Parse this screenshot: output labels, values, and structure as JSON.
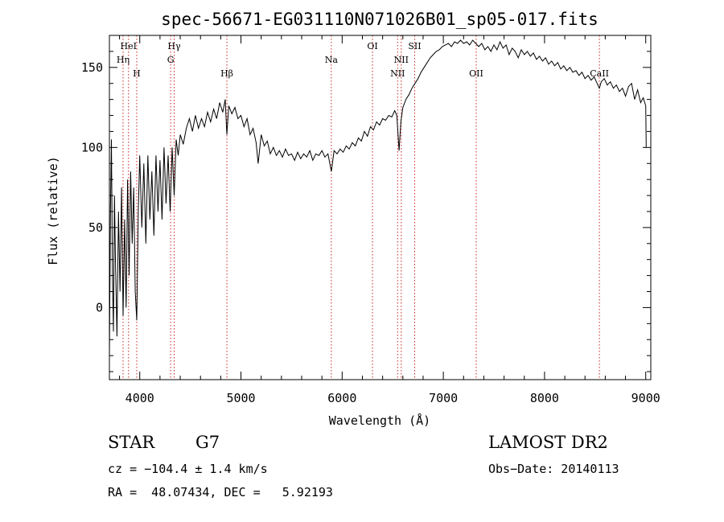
{
  "chart_data": {
    "type": "line",
    "title": "spec-56671-EG031110N071026B01_sp05-017.fits",
    "xlabel": "Wavelength (Å)",
    "ylabel": "Flux (relative)",
    "xlim": [
      3700,
      9050
    ],
    "ylim": [
      -45,
      170
    ],
    "xticks": [
      4000,
      5000,
      6000,
      7000,
      8000,
      9000
    ],
    "yticks": [
      0,
      50,
      100,
      150
    ],
    "grid": false,
    "legend": "none",
    "series_color": "#000000",
    "line_marker_color": "#cc2222",
    "spectral_lines": [
      {
        "label": "Hη",
        "x": 3835,
        "row": 1
      },
      {
        "label": "HeI",
        "x": 3889,
        "row": 0
      },
      {
        "label": "H",
        "x": 3970,
        "row": 2
      },
      {
        "label": "Hγ",
        "x": 4340,
        "row": 0
      },
      {
        "label": "G",
        "x": 4305,
        "row": 1
      },
      {
        "label": "Hβ",
        "x": 4861,
        "row": 2
      },
      {
        "label": "Na",
        "x": 5893,
        "row": 1
      },
      {
        "label": "OI",
        "x": 6300,
        "row": 0
      },
      {
        "label": "NII",
        "x": 6584,
        "row": 1
      },
      {
        "label": "NII",
        "x": 6548,
        "row": 2
      },
      {
        "label": "OII",
        "x": 7325,
        "row": 2
      },
      {
        "label": "SII",
        "x": 6717,
        "row": 0
      },
      {
        "label": "CaII",
        "x": 8542,
        "row": 2
      }
    ],
    "spectrum": [
      [
        3700,
        -30
      ],
      [
        3710,
        60
      ],
      [
        3720,
        105
      ],
      [
        3730,
        20
      ],
      [
        3740,
        -15
      ],
      [
        3750,
        70
      ],
      [
        3760,
        30
      ],
      [
        3775,
        -18
      ],
      [
        3790,
        60
      ],
      [
        3805,
        10
      ],
      [
        3820,
        75
      ],
      [
        3835,
        -5
      ],
      [
        3850,
        55
      ],
      [
        3865,
        0
      ],
      [
        3880,
        80
      ],
      [
        3895,
        20
      ],
      [
        3910,
        85
      ],
      [
        3925,
        40
      ],
      [
        3940,
        75
      ],
      [
        3955,
        10
      ],
      [
        3970,
        -8
      ],
      [
        3985,
        60
      ],
      [
        4000,
        95
      ],
      [
        4020,
        50
      ],
      [
        4040,
        90
      ],
      [
        4060,
        40
      ],
      [
        4080,
        95
      ],
      [
        4100,
        55
      ],
      [
        4120,
        85
      ],
      [
        4140,
        45
      ],
      [
        4160,
        95
      ],
      [
        4180,
        60
      ],
      [
        4200,
        92
      ],
      [
        4220,
        55
      ],
      [
        4240,
        100
      ],
      [
        4260,
        65
      ],
      [
        4280,
        95
      ],
      [
        4300,
        60
      ],
      [
        4320,
        100
      ],
      [
        4340,
        70
      ],
      [
        4360,
        105
      ],
      [
        4380,
        95
      ],
      [
        4400,
        108
      ],
      [
        4430,
        102
      ],
      [
        4460,
        112
      ],
      [
        4490,
        118
      ],
      [
        4520,
        110
      ],
      [
        4550,
        120
      ],
      [
        4580,
        112
      ],
      [
        4610,
        118
      ],
      [
        4640,
        113
      ],
      [
        4670,
        122
      ],
      [
        4700,
        116
      ],
      [
        4730,
        124
      ],
      [
        4760,
        118
      ],
      [
        4790,
        128
      ],
      [
        4820,
        122
      ],
      [
        4845,
        130
      ],
      [
        4861,
        108
      ],
      [
        4880,
        126
      ],
      [
        4910,
        121
      ],
      [
        4940,
        125
      ],
      [
        4970,
        118
      ],
      [
        5000,
        120
      ],
      [
        5030,
        113
      ],
      [
        5060,
        118
      ],
      [
        5090,
        108
      ],
      [
        5120,
        112
      ],
      [
        5150,
        103
      ],
      [
        5170,
        90
      ],
      [
        5200,
        108
      ],
      [
        5230,
        101
      ],
      [
        5260,
        104
      ],
      [
        5290,
        96
      ],
      [
        5320,
        100
      ],
      [
        5350,
        95
      ],
      [
        5380,
        98
      ],
      [
        5410,
        94
      ],
      [
        5440,
        99
      ],
      [
        5470,
        95
      ],
      [
        5500,
        96
      ],
      [
        5530,
        92
      ],
      [
        5560,
        97
      ],
      [
        5590,
        93
      ],
      [
        5620,
        96
      ],
      [
        5650,
        94
      ],
      [
        5680,
        98
      ],
      [
        5710,
        92
      ],
      [
        5740,
        96
      ],
      [
        5770,
        95
      ],
      [
        5800,
        98
      ],
      [
        5830,
        94
      ],
      [
        5860,
        96
      ],
      [
        5893,
        85
      ],
      [
        5920,
        98
      ],
      [
        5950,
        96
      ],
      [
        5980,
        99
      ],
      [
        6010,
        97
      ],
      [
        6040,
        101
      ],
      [
        6070,
        99
      ],
      [
        6100,
        103
      ],
      [
        6130,
        101
      ],
      [
        6160,
        106
      ],
      [
        6190,
        104
      ],
      [
        6220,
        110
      ],
      [
        6250,
        107
      ],
      [
        6280,
        113
      ],
      [
        6310,
        111
      ],
      [
        6340,
        116
      ],
      [
        6370,
        114
      ],
      [
        6400,
        118
      ],
      [
        6430,
        117
      ],
      [
        6460,
        120
      ],
      [
        6490,
        119
      ],
      [
        6520,
        123
      ],
      [
        6540,
        120
      ],
      [
        6563,
        98
      ],
      [
        6580,
        116
      ],
      [
        6600,
        125
      ],
      [
        6630,
        130
      ],
      [
        6660,
        133
      ],
      [
        6690,
        137
      ],
      [
        6720,
        140
      ],
      [
        6750,
        143
      ],
      [
        6780,
        147
      ],
      [
        6810,
        150
      ],
      [
        6840,
        153
      ],
      [
        6870,
        156
      ],
      [
        6900,
        158
      ],
      [
        6930,
        160
      ],
      [
        6960,
        161
      ],
      [
        6990,
        163
      ],
      [
        7020,
        164
      ],
      [
        7050,
        165
      ],
      [
        7080,
        163
      ],
      [
        7110,
        166
      ],
      [
        7140,
        165
      ],
      [
        7170,
        167
      ],
      [
        7200,
        165
      ],
      [
        7230,
        166
      ],
      [
        7260,
        164
      ],
      [
        7290,
        167
      ],
      [
        7320,
        165
      ],
      [
        7350,
        163
      ],
      [
        7380,
        165
      ],
      [
        7410,
        161
      ],
      [
        7440,
        163
      ],
      [
        7470,
        160
      ],
      [
        7500,
        164
      ],
      [
        7530,
        161
      ],
      [
        7560,
        166
      ],
      [
        7590,
        162
      ],
      [
        7620,
        164
      ],
      [
        7650,
        158
      ],
      [
        7680,
        162
      ],
      [
        7710,
        160
      ],
      [
        7740,
        156
      ],
      [
        7770,
        161
      ],
      [
        7800,
        158
      ],
      [
        7830,
        160
      ],
      [
        7860,
        157
      ],
      [
        7890,
        159
      ],
      [
        7920,
        155
      ],
      [
        7950,
        157
      ],
      [
        7980,
        154
      ],
      [
        8010,
        156
      ],
      [
        8040,
        152
      ],
      [
        8070,
        154
      ],
      [
        8100,
        151
      ],
      [
        8130,
        153
      ],
      [
        8160,
        149
      ],
      [
        8190,
        151
      ],
      [
        8220,
        148
      ],
      [
        8250,
        150
      ],
      [
        8280,
        147
      ],
      [
        8310,
        148
      ],
      [
        8340,
        145
      ],
      [
        8370,
        147
      ],
      [
        8400,
        143
      ],
      [
        8430,
        145
      ],
      [
        8460,
        142
      ],
      [
        8490,
        144
      ],
      [
        8520,
        140
      ],
      [
        8542,
        137
      ],
      [
        8560,
        141
      ],
      [
        8590,
        143
      ],
      [
        8620,
        139
      ],
      [
        8650,
        141
      ],
      [
        8680,
        137
      ],
      [
        8710,
        139
      ],
      [
        8740,
        135
      ],
      [
        8770,
        137
      ],
      [
        8800,
        132
      ],
      [
        8830,
        138
      ],
      [
        8860,
        140
      ],
      [
        8890,
        130
      ],
      [
        8920,
        136
      ],
      [
        8950,
        128
      ],
      [
        8975,
        131
      ],
      [
        9000,
        126
      ],
      [
        9005,
        100
      ]
    ]
  },
  "info": {
    "class": "STAR",
    "subclass": "G7",
    "survey": "LAMOST DR2",
    "cz": "cz = −104.4 ± 1.4 km/s",
    "obs_date": "Obs−Date: 20140113",
    "coords": "RA =  48.07434, DEC =   5.92193"
  }
}
